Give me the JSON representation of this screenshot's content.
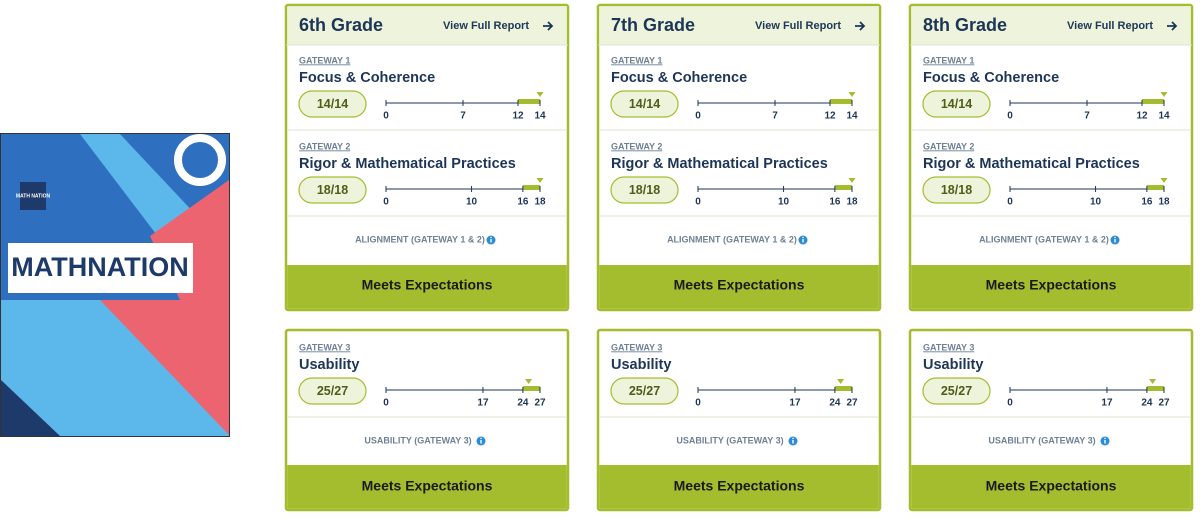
{
  "cover": {
    "logo": "MATH NATION",
    "title": "MATHNATION"
  },
  "grades": [
    {
      "title": "6th Grade",
      "report_link": "View Full Report",
      "gateways": [
        {
          "label": "GATEWAY 1",
          "name": "Focus & Coherence",
          "score": {
            "value": 14,
            "label": "14/14"
          },
          "ticks": [
            0,
            7,
            12,
            14
          ]
        },
        {
          "label": "GATEWAY 2",
          "name": "Rigor & Mathematical Practices",
          "score": {
            "value": 18,
            "label": "18/18"
          },
          "ticks": [
            0,
            10,
            16,
            18
          ]
        },
        {
          "label": "GATEWAY 3",
          "name": "Usability",
          "score": {
            "value": 25,
            "label": "25/27"
          },
          "ticks": [
            0,
            17,
            24,
            27
          ]
        }
      ],
      "alignment_note": "ALIGNMENT (GATEWAY 1 & 2)",
      "alignment_rating": "Meets Expectations",
      "usability_note": "USABILITY (GATEWAY 3)",
      "usability_rating": "Meets Expectations"
    },
    {
      "title": "7th Grade",
      "report_link": "View Full Report",
      "gateways": [
        {
          "label": "GATEWAY 1",
          "name": "Focus & Coherence",
          "score": {
            "value": 14,
            "label": "14/14"
          },
          "ticks": [
            0,
            7,
            12,
            14
          ]
        },
        {
          "label": "GATEWAY 2",
          "name": "Rigor & Mathematical Practices",
          "score": {
            "value": 18,
            "label": "18/18"
          },
          "ticks": [
            0,
            10,
            16,
            18
          ]
        },
        {
          "label": "GATEWAY 3",
          "name": "Usability",
          "score": {
            "value": 25,
            "label": "25/27"
          },
          "ticks": [
            0,
            17,
            24,
            27
          ]
        }
      ],
      "alignment_note": "ALIGNMENT (GATEWAY 1 & 2)",
      "alignment_rating": "Meets Expectations",
      "usability_note": "USABILITY (GATEWAY 3)",
      "usability_rating": "Meets Expectations"
    },
    {
      "title": "8th Grade",
      "report_link": "View Full Report",
      "gateways": [
        {
          "label": "GATEWAY 1",
          "name": "Focus & Coherence",
          "score": {
            "value": 14,
            "label": "14/14"
          },
          "ticks": [
            0,
            7,
            12,
            14
          ]
        },
        {
          "label": "GATEWAY 2",
          "name": "Rigor & Mathematical Practices",
          "score": {
            "value": 18,
            "label": "18/18"
          },
          "ticks": [
            0,
            10,
            16,
            18
          ]
        },
        {
          "label": "GATEWAY 3",
          "name": "Usability",
          "score": {
            "value": 25,
            "label": "25/27"
          },
          "ticks": [
            0,
            17,
            24,
            27
          ]
        }
      ],
      "alignment_note": "ALIGNMENT (GATEWAY 1 & 2)",
      "alignment_rating": "Meets Expectations",
      "usability_note": "USABILITY (GATEWAY 3)",
      "usability_rating": "Meets Expectations"
    }
  ]
}
